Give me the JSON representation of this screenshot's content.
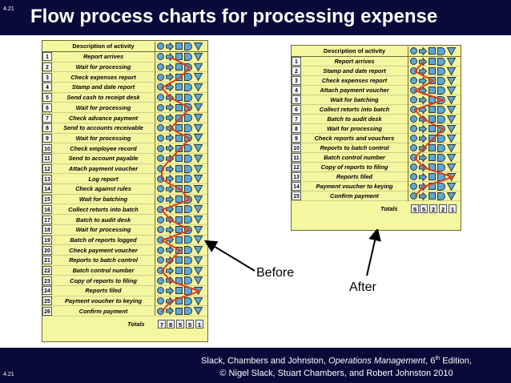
{
  "slide": {
    "number_top": "4.21",
    "number_bottom": "4.21",
    "title": "Flow process charts for processing expense",
    "footer_line1_pre": "Slack, Chambers and Johnston, ",
    "footer_book": "Operations Management",
    "footer_edition_num": ", 6",
    "footer_edition_sup": "th",
    "footer_edition_post": " Edition,",
    "footer_line2": "© Nigel Slack, Stuart Chambers, and Robert Johnston 2010"
  },
  "colors": {
    "background_bar": "#0a0a3a",
    "chart_fill": "#f4f7a0",
    "symbol_fill": "#5aa8d8",
    "flow_line": "#e03a1a"
  },
  "symbols": [
    "operation-circle",
    "transport-arrow",
    "inspection-square",
    "delay-d",
    "storage-triangle"
  ],
  "before": {
    "label": "Before",
    "header": "Description of activity",
    "totals_label": "Totals",
    "totals": [
      "7",
      "8",
      "5",
      "5",
      "1"
    ],
    "rows": [
      {
        "n": "1",
        "desc": "Report arrives",
        "sym": 1
      },
      {
        "n": "2",
        "desc": "Wait for processing",
        "sym": 3
      },
      {
        "n": "3",
        "desc": "Check expenses report",
        "sym": 2
      },
      {
        "n": "4",
        "desc": "Stamp and date report",
        "sym": 0
      },
      {
        "n": "5",
        "desc": "Send cash to receipt desk",
        "sym": 1
      },
      {
        "n": "6",
        "desc": "Wait for processing",
        "sym": 3
      },
      {
        "n": "7",
        "desc": "Check advance payment",
        "sym": 2
      },
      {
        "n": "8",
        "desc": "Send to accounts receivable",
        "sym": 1
      },
      {
        "n": "9",
        "desc": "Wait for processing",
        "sym": 3
      },
      {
        "n": "10",
        "desc": "Check employee record",
        "sym": 2
      },
      {
        "n": "11",
        "desc": "Send to account payable",
        "sym": 1
      },
      {
        "n": "12",
        "desc": "Attach payment voucher",
        "sym": 0
      },
      {
        "n": "13",
        "desc": "Log report",
        "sym": 0
      },
      {
        "n": "14",
        "desc": "Check against rules",
        "sym": 2
      },
      {
        "n": "15",
        "desc": "Wait for batching",
        "sym": 3
      },
      {
        "n": "16",
        "desc": "Collect retorts into batch",
        "sym": 0
      },
      {
        "n": "17",
        "desc": "Batch to audit desk",
        "sym": 1
      },
      {
        "n": "18",
        "desc": "Wait for processing",
        "sym": 3
      },
      {
        "n": "19",
        "desc": "Batch of reports logged",
        "sym": 0
      },
      {
        "n": "20",
        "desc": "Check payment voucher",
        "sym": 2
      },
      {
        "n": "21",
        "desc": "Reports to batch control",
        "sym": 1
      },
      {
        "n": "22",
        "desc": "Batch control number",
        "sym": 0
      },
      {
        "n": "23",
        "desc": "Copy of reports to filing",
        "sym": 1
      },
      {
        "n": "24",
        "desc": "Reports filed",
        "sym": 4
      },
      {
        "n": "25",
        "desc": "Payment voucher to keying",
        "sym": 1
      },
      {
        "n": "26",
        "desc": "Confirm payment",
        "sym": 0
      }
    ]
  },
  "after": {
    "label": "After",
    "header": "Description of activity",
    "totals_label": "Totals",
    "totals": [
      "5",
      "5",
      "2",
      "2",
      "1"
    ],
    "rows": [
      {
        "n": "1",
        "desc": "Report arrives",
        "sym": 1
      },
      {
        "n": "2",
        "desc": "Stamp and date report",
        "sym": 0
      },
      {
        "n": "3",
        "desc": "Check expenses report",
        "sym": 2
      },
      {
        "n": "4",
        "desc": "Attach payment voucher",
        "sym": 0
      },
      {
        "n": "5",
        "desc": "Wait for batching",
        "sym": 3
      },
      {
        "n": "6",
        "desc": "Collect retorts into batch",
        "sym": 0
      },
      {
        "n": "7",
        "desc": "Batch to audit desk",
        "sym": 1
      },
      {
        "n": "8",
        "desc": "Wait for processing",
        "sym": 3
      },
      {
        "n": "9",
        "desc": "Check reports and vouchers",
        "sym": 2
      },
      {
        "n": "10",
        "desc": "Reports to batch control",
        "sym": 1
      },
      {
        "n": "11",
        "desc": "Batch control number",
        "sym": 0
      },
      {
        "n": "12",
        "desc": "Copy of reports to filing",
        "sym": 1
      },
      {
        "n": "13",
        "desc": "Reports filed",
        "sym": 4
      },
      {
        "n": "14",
        "desc": "Payment voucher to keying",
        "sym": 1
      },
      {
        "n": "15",
        "desc": "Confirm payment",
        "sym": 0
      }
    ]
  }
}
